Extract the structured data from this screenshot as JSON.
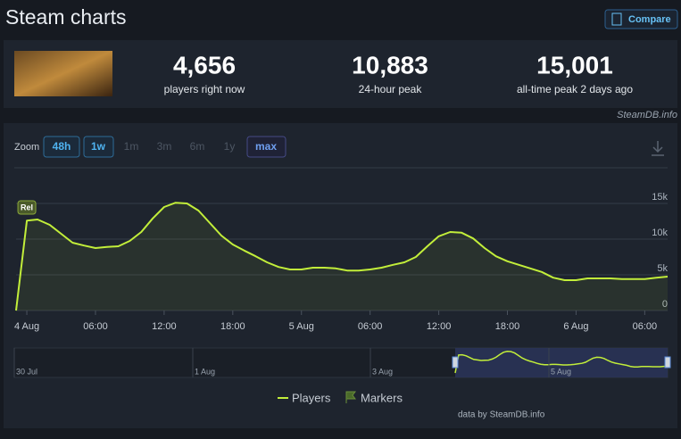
{
  "header": {
    "title": "Steam charts",
    "compare": "Compare"
  },
  "stats": [
    {
      "value": "4,656",
      "label": "players right now"
    },
    {
      "value": "10,883",
      "label": "24-hour peak"
    },
    {
      "value": "15,001",
      "label": "all-time peak 2 days ago"
    }
  ],
  "credit": "SteamDB.info",
  "zoom": {
    "label": "Zoom",
    "options": [
      "48h",
      "1w",
      "1m",
      "3m",
      "6m",
      "1y",
      "max"
    ]
  },
  "chart_data": {
    "type": "line",
    "x": [
      -0.94,
      0,
      0.94,
      2,
      3,
      4,
      5,
      6,
      7,
      8,
      9,
      10,
      11,
      12,
      13,
      14,
      15,
      16,
      17,
      18,
      19,
      20,
      21,
      22,
      23,
      24,
      25,
      26,
      27,
      28,
      29,
      30,
      31,
      32,
      33,
      34,
      35,
      36,
      37,
      38,
      39,
      40,
      41,
      42,
      43,
      44,
      45,
      46,
      47,
      48,
      49,
      50,
      51,
      52,
      53,
      54,
      55,
      56
    ],
    "series": [
      {
        "name": "Players",
        "color": "#c2ee3a",
        "values": [
          0,
          12600,
          12750,
          12000,
          10750,
          9500,
          9100,
          8750,
          8900,
          9000,
          9750,
          11000,
          12900,
          14500,
          15100,
          15000,
          14000,
          12250,
          10500,
          9250,
          8400,
          7600,
          6750,
          6100,
          5750,
          5750,
          6000,
          6000,
          5900,
          5600,
          5600,
          5750,
          6000,
          6400,
          6750,
          7500,
          9000,
          10400,
          11000,
          10900,
          10100,
          8750,
          7600,
          6900,
          6400,
          5900,
          5400,
          4600,
          4250,
          4250,
          4500,
          4500,
          4500,
          4400,
          4400,
          4400,
          4600,
          4750
        ]
      }
    ],
    "xlim": [
      -0.94,
      56
    ],
    "xticks": [
      {
        "value": 0,
        "label": "4 Aug"
      },
      {
        "value": 6,
        "label": "06:00"
      },
      {
        "value": 12,
        "label": "12:00"
      },
      {
        "value": 18,
        "label": "18:00"
      },
      {
        "value": 24,
        "label": "5 Aug"
      },
      {
        "value": 30,
        "label": "06:00"
      },
      {
        "value": 36,
        "label": "12:00"
      },
      {
        "value": 42,
        "label": "18:00"
      },
      {
        "value": 48,
        "label": "6 Aug"
      },
      {
        "value": 54,
        "label": "06:00"
      }
    ],
    "ylim": [
      0,
      15000
    ],
    "yticks": [
      0,
      {
        "value": 5000,
        "label": "5k"
      },
      {
        "value": 10000,
        "label": "10k"
      },
      {
        "value": 15000,
        "label": "15k"
      }
    ],
    "grid": true,
    "annotations": [
      {
        "text": "Rel",
        "x": 0
      }
    ],
    "legend": {
      "markers": "Markers"
    }
  },
  "navigator": {
    "labels": [
      "30 Jul",
      "1 Aug",
      "3 Aug",
      "5 Aug"
    ]
  },
  "footer": "data by SteamDB.info"
}
